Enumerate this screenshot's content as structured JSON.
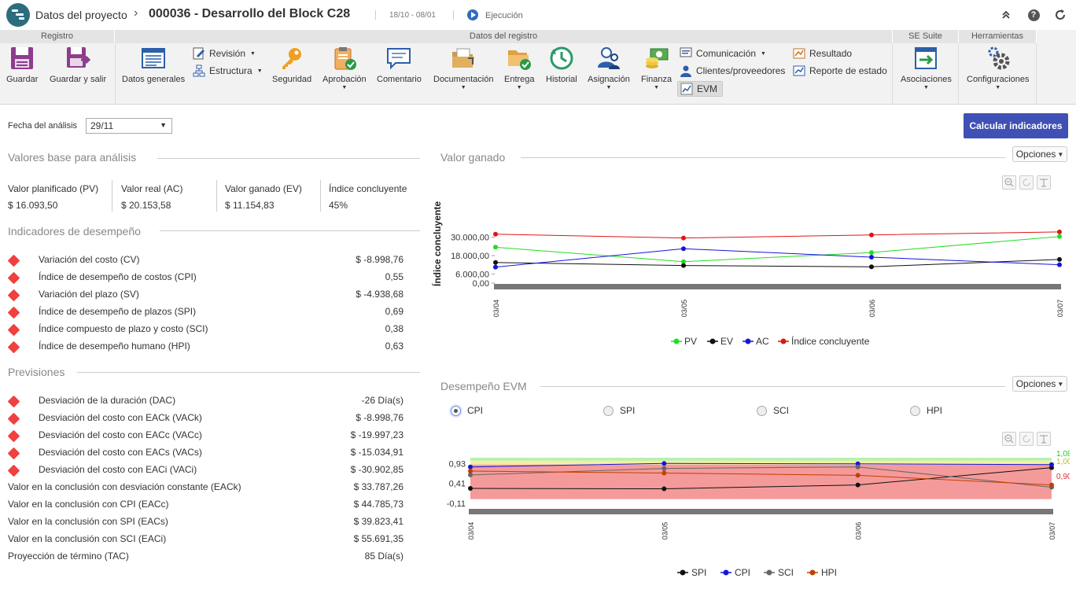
{
  "header": {
    "breadcrumb": "Datos del proyecto",
    "project_title": "000036 - Desarrollo del Block C28",
    "dates": "18/10 - 08/01",
    "status": "Ejecución"
  },
  "ribbon": {
    "groups": {
      "registro": "Registro",
      "datos_registro": "Datos del registro",
      "se_suite": "SE Suite",
      "herramientas": "Herramientas"
    },
    "buttons": {
      "guardar": "Guardar",
      "guardar_salir": "Guardar y salir",
      "datos_generales": "Datos generales",
      "revision": "Revisión",
      "estructura": "Estructura",
      "seguridad": "Seguridad",
      "aprobacion": "Aprobación",
      "comentario": "Comentario",
      "documentacion": "Documentación",
      "entrega": "Entrega",
      "historial": "Historial",
      "asignacion": "Asignación",
      "finanza": "Finanza",
      "comunicacion": "Comunicación",
      "clientes": "Clientes/proveedores",
      "evm": "EVM",
      "resultado": "Resultado",
      "reporte": "Reporte de estado",
      "asociaciones": "Asociaciones",
      "configuraciones": "Configuraciones"
    }
  },
  "toolbar": {
    "fecha_label": "Fecha del análisis",
    "fecha_value": "29/11",
    "calc_button": "Calcular indicadores"
  },
  "base": {
    "title": "Valores base para análisis",
    "items": [
      {
        "label": "Valor planificado (PV)",
        "value": "$ 16.093,50"
      },
      {
        "label": "Valor real (AC)",
        "value": "$ 20.153,58"
      },
      {
        "label": "Valor ganado (EV)",
        "value": "$ 11.154,83"
      },
      {
        "label": "Índice concluyente",
        "value": "45%"
      }
    ]
  },
  "indicadores": {
    "title": "Indicadores de desempeño",
    "rows": [
      {
        "label": "Variación del costo (CV)",
        "value": "$ -8.998,76"
      },
      {
        "label": "Índice de desempeño de costos (CPI)",
        "value": "0,55"
      },
      {
        "label": "Variación del plazo (SV)",
        "value": "$ -4.938,68"
      },
      {
        "label": "Índice de desempeño de plazos (SPI)",
        "value": "0,69"
      },
      {
        "label": "Índice compuesto de plazo y costo (SCI)",
        "value": "0,38"
      },
      {
        "label": "Índice de desempeño humano (HPI)",
        "value": "0,63"
      }
    ]
  },
  "previsiones": {
    "title": "Previsiones",
    "rows": [
      {
        "label": "Desviación de la duración (DAC)",
        "value": "-26 Día(s)"
      },
      {
        "label": "Desviación del costo con EACk (VACk)",
        "value": "$ -8.998,76"
      },
      {
        "label": "Desviación del costo con EACc (VACc)",
        "value": "$ -19.997,23"
      },
      {
        "label": "Desviación del costo con EACs (VACs)",
        "value": "$ -15.034,91"
      },
      {
        "label": "Desviación del costo con EACi (VACi)",
        "value": "$ -30.902,85"
      },
      {
        "label": "Valor en la conclusión con desviación constante (EACk)",
        "value": "$ 33.787,26"
      },
      {
        "label": "Valor en la conclusión con CPI (EACc)",
        "value": "$ 44.785,73"
      },
      {
        "label": "Valor en la conclusión con SPI (EACs)",
        "value": "$ 39.823,41"
      },
      {
        "label": "Valor en la conclusión con SCI (EACi)",
        "value": "$ 55.691,35"
      },
      {
        "label": "Proyección de término (TAC)",
        "value": "85 Día(s)"
      }
    ]
  },
  "valor_ganado": {
    "title": "Valor ganado",
    "options": "Opciones"
  },
  "desempeno": {
    "title": "Desempeño EVM",
    "options": "Opciones",
    "radios": [
      "CPI",
      "SPI",
      "SCI",
      "HPI"
    ],
    "selected": "CPI"
  },
  "colors": {
    "accent": "#3f51b5",
    "pv": "#22dd22",
    "ev": "#111111",
    "ac": "#1515dd",
    "ic": "#e01515",
    "spi": "#111111",
    "cpi": "#1515dd",
    "sci": "#666666",
    "hpi": "#c04000",
    "alert": "#f04040"
  },
  "chart_data": [
    {
      "type": "line",
      "title": "Valor ganado",
      "ylabel": "Índice concluyente",
      "x": [
        "03/04",
        "03/05",
        "03/06",
        "03/07"
      ],
      "yticks": [
        "0,00",
        "6.000,00",
        "18.000,00",
        "30.000,00"
      ],
      "ylim": [
        0,
        36000
      ],
      "series": [
        {
          "name": "PV",
          "values": [
            23500,
            14000,
            20000,
            30500
          ]
        },
        {
          "name": "EV",
          "values": [
            13500,
            11500,
            10700,
            15500
          ]
        },
        {
          "name": "AC",
          "values": [
            10500,
            22500,
            17000,
            12000
          ]
        },
        {
          "name": "Índice concluyente",
          "values": [
            32000,
            29500,
            31500,
            33500
          ]
        }
      ]
    },
    {
      "type": "line",
      "title": "Desempeño EVM",
      "x": [
        "03/04",
        "03/05",
        "03/06",
        "03/07"
      ],
      "yticks": [
        "-0,11",
        "0,41",
        "0,93"
      ],
      "ylim": [
        -0.11,
        1.08
      ],
      "bands": [
        {
          "from": 1.0,
          "to": 1.08,
          "color": "#b8f0b0"
        },
        {
          "from": 0.9,
          "to": 1.0,
          "color": "#f5eea0"
        },
        {
          "from": 0.0,
          "to": 0.9,
          "color": "#f59a9a"
        }
      ],
      "right_labels": [
        "1,08",
        "1,00",
        "0,90"
      ],
      "series": [
        {
          "name": "SPI",
          "values": [
            0.28,
            0.27,
            0.37,
            0.82
          ]
        },
        {
          "name": "CPI",
          "values": [
            0.84,
            0.93,
            0.92,
            0.9
          ]
        },
        {
          "name": "SCI",
          "values": [
            0.63,
            0.8,
            0.84,
            0.31
          ]
        },
        {
          "name": "HPI",
          "values": [
            0.73,
            0.68,
            0.62,
            0.37
          ]
        }
      ]
    }
  ]
}
